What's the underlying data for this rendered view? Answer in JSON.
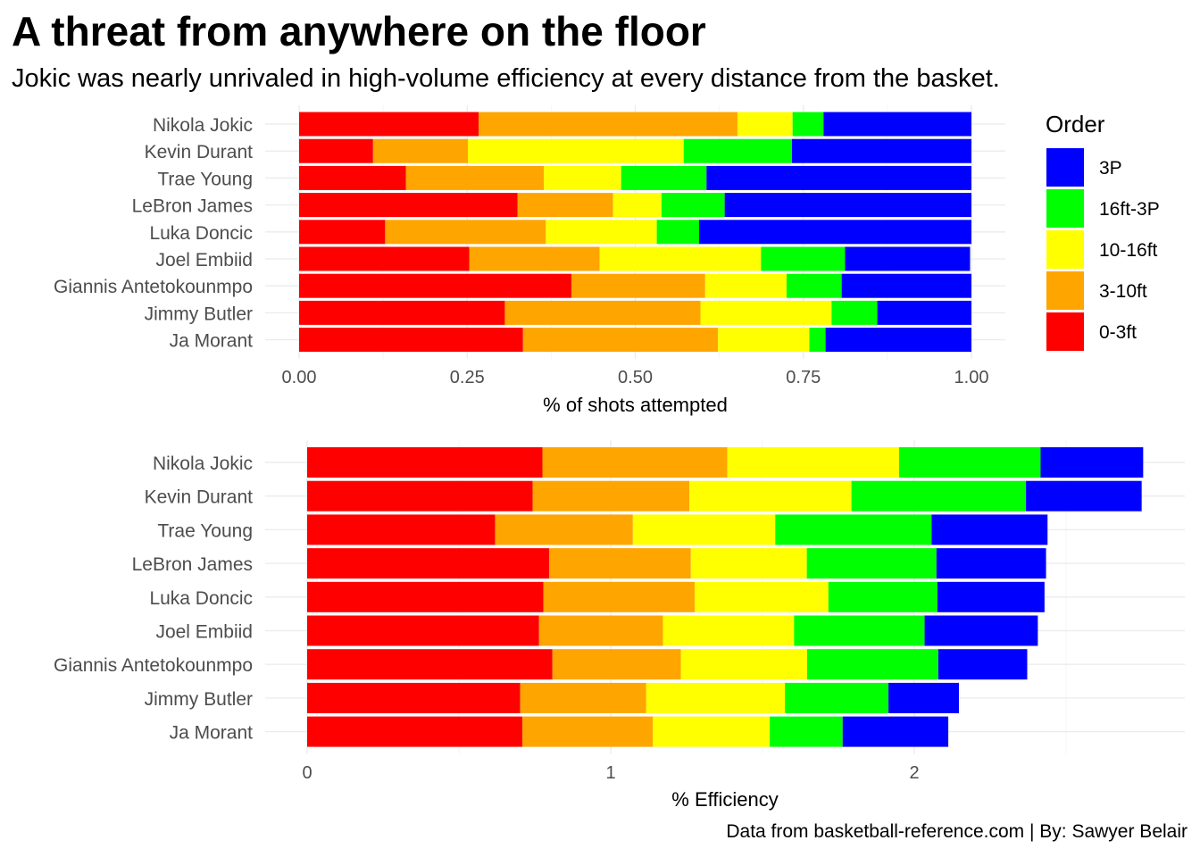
{
  "title": "A threat from anywhere on the floor",
  "subtitle": "Jokic was nearly unrivaled in high-volume efficiency at every distance from the basket.",
  "caption": "Data from basketball-reference.com | By: Sawyer Belair",
  "legend": {
    "title": "Order",
    "items": [
      {
        "label": "3P",
        "color": "#0000ff"
      },
      {
        "label": "16ft-3P",
        "color": "#00ff00"
      },
      {
        "label": "10-16ft",
        "color": "#ffff00"
      },
      {
        "label": "3-10ft",
        "color": "#ffa500"
      },
      {
        "label": "0-3ft",
        "color": "#ff0000"
      }
    ]
  },
  "chart_data": [
    {
      "type": "bar",
      "orientation": "horizontal",
      "stacked": true,
      "xlabel": "% of shots attempted",
      "ylabel": "",
      "xlim": [
        0,
        1
      ],
      "xticks": [
        "0.00",
        "0.25",
        "0.50",
        "0.75",
        "1.00"
      ],
      "xtick_values": [
        0,
        0.25,
        0.5,
        0.75,
        1.0
      ],
      "categories": [
        "Nikola Jokic",
        "Kevin Durant",
        "Trae Young",
        "LeBron James",
        "Luka Doncic",
        "Joel Embiid",
        "Giannis Antetokounmpo",
        "Jimmy Butler",
        "Ja Morant"
      ],
      "series": [
        {
          "name": "0-3ft",
          "values": [
            0.267,
            0.11,
            0.159,
            0.325,
            0.128,
            0.253,
            0.405,
            0.306,
            0.333
          ]
        },
        {
          "name": "3-10ft",
          "values": [
            0.385,
            0.141,
            0.205,
            0.142,
            0.239,
            0.194,
            0.199,
            0.291,
            0.29
          ]
        },
        {
          "name": "10-16ft",
          "values": [
            0.082,
            0.321,
            0.115,
            0.072,
            0.165,
            0.24,
            0.121,
            0.195,
            0.136
          ]
        },
        {
          "name": "16ft-3P",
          "values": [
            0.046,
            0.161,
            0.127,
            0.094,
            0.063,
            0.125,
            0.082,
            0.068,
            0.024
          ]
        },
        {
          "name": "3P",
          "values": [
            0.22,
            0.267,
            0.394,
            0.367,
            0.405,
            0.186,
            0.193,
            0.14,
            0.217
          ]
        }
      ]
    },
    {
      "type": "bar",
      "orientation": "horizontal",
      "stacked": true,
      "xlabel": "% Efficiency",
      "ylabel": "",
      "xlim": [
        0,
        2.75
      ],
      "xticks": [
        "0",
        "1",
        "2"
      ],
      "xtick_values": [
        0,
        1,
        2
      ],
      "categories": [
        "Nikola Jokic",
        "Kevin Durant",
        "Trae Young",
        "LeBron James",
        "Luka Doncic",
        "Joel Embiid",
        "Giannis Antetokounmpo",
        "Jimmy Butler",
        "Ja Morant"
      ],
      "series": [
        {
          "name": "0-3ft",
          "values": [
            0.775,
            0.743,
            0.619,
            0.797,
            0.778,
            0.764,
            0.808,
            0.702,
            0.709
          ]
        },
        {
          "name": "3-10ft",
          "values": [
            0.609,
            0.516,
            0.454,
            0.467,
            0.499,
            0.408,
            0.423,
            0.415,
            0.43
          ]
        },
        {
          "name": "10-16ft",
          "values": [
            0.566,
            0.534,
            0.469,
            0.382,
            0.44,
            0.432,
            0.416,
            0.457,
            0.385
          ]
        },
        {
          "name": "16ft-3P",
          "values": [
            0.466,
            0.575,
            0.515,
            0.427,
            0.359,
            0.43,
            0.432,
            0.341,
            0.24
          ]
        },
        {
          "name": "3P",
          "values": [
            0.338,
            0.381,
            0.382,
            0.361,
            0.353,
            0.373,
            0.293,
            0.232,
            0.348
          ]
        }
      ]
    }
  ]
}
